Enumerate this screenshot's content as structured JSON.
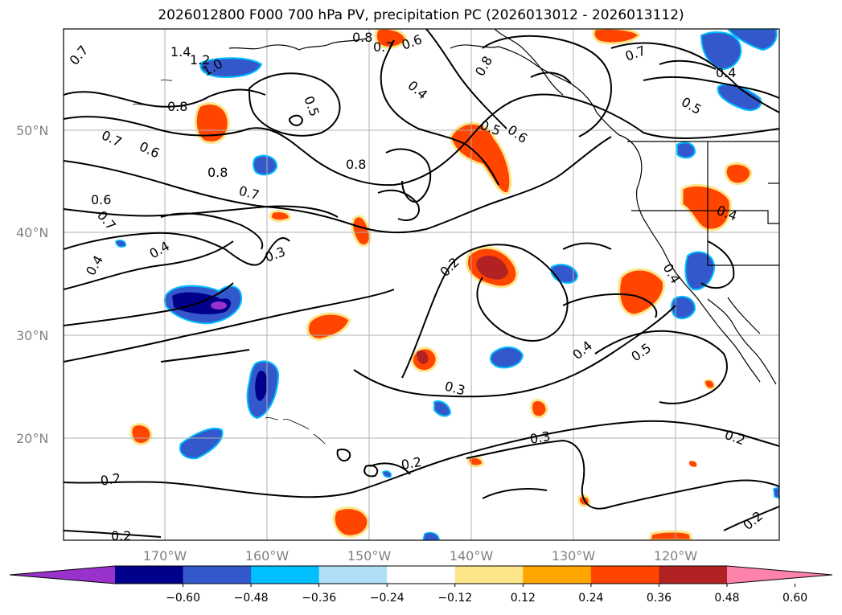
{
  "title": "2026012800 F000 700 hPa PV, precipitation PC (2026013012 - 2026013112)",
  "colors": {
    "grid": "#b0b0b0",
    "contour": "#000000",
    "coast": "#000000",
    "tick_label": "#808080"
  },
  "map": {
    "lat_ticks": [
      "50°N",
      "40°N",
      "30°N",
      "20°N"
    ],
    "lon_ticks": [
      "170°W",
      "160°W",
      "150°W",
      "140°W",
      "130°W",
      "120°W"
    ]
  },
  "contour_labels": [
    "1.4",
    "1.2",
    "1.0",
    "0.8",
    "0.7",
    "0.6",
    "0.5",
    "0.4",
    "0.3",
    "0.2"
  ],
  "colorbar": {
    "ticks": [
      "−0.60",
      "−0.48",
      "−0.36",
      "−0.24",
      "−0.12",
      "0.12",
      "0.24",
      "0.36",
      "0.48",
      "0.60"
    ],
    "colors": [
      "#9932cc",
      "#00008b",
      "#3358cc",
      "#00bfff",
      "#b0e0f8",
      "#ffffff",
      "#fde68a",
      "#ffa500",
      "#ff4500",
      "#b22222",
      "#ff82ab"
    ]
  }
}
